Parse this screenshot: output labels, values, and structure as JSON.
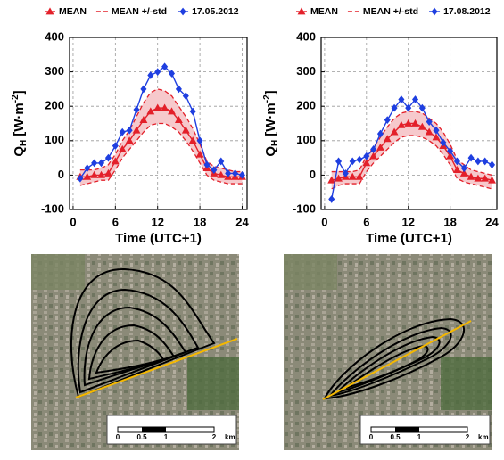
{
  "chart_data": [
    {
      "type": "line",
      "ylabel": {
        "main": "Q",
        "sub": "H",
        "unit": "[W·m",
        "sup": "-2",
        "end": "]"
      },
      "xlabel": "Time (UTC+1)",
      "x": [
        1,
        2,
        3,
        4,
        5,
        6,
        7,
        8,
        9,
        10,
        11,
        12,
        13,
        14,
        15,
        16,
        17,
        18,
        19,
        20,
        21,
        22,
        23,
        24
      ],
      "xlim": [
        -0.5,
        24.7
      ],
      "xticks": [
        0,
        6,
        12,
        18,
        24
      ],
      "ylim": [
        -100,
        400
      ],
      "yticks": [
        -100,
        0,
        100,
        200,
        300,
        400
      ],
      "grid": true,
      "series": [
        {
          "name": "MEAN",
          "color": "#e3202a",
          "marker": "triangle",
          "values": [
            -5,
            -5,
            0,
            0,
            5,
            40,
            75,
            100,
            130,
            160,
            185,
            195,
            195,
            185,
            160,
            130,
            100,
            60,
            20,
            5,
            0,
            -5,
            -5,
            -5
          ]
        },
        {
          "name": "MEAN +/-std",
          "color": "#e3202a",
          "band": "#f6c9cc",
          "upper": [
            15,
            15,
            15,
            20,
            30,
            60,
            100,
            130,
            170,
            210,
            240,
            250,
            245,
            230,
            200,
            170,
            135,
            90,
            40,
            25,
            20,
            15,
            10,
            10
          ],
          "lower": [
            -30,
            -25,
            -20,
            -15,
            -15,
            15,
            50,
            75,
            100,
            125,
            145,
            150,
            150,
            140,
            125,
            100,
            70,
            35,
            0,
            -15,
            -20,
            -25,
            -25,
            -25
          ]
        },
        {
          "name": "17.05.2012",
          "color": "#1f3fe0",
          "marker": "diamond",
          "values": [
            -10,
            20,
            35,
            35,
            50,
            85,
            125,
            130,
            190,
            250,
            290,
            300,
            315,
            295,
            250,
            230,
            185,
            100,
            30,
            15,
            40,
            5,
            5,
            0
          ]
        }
      ]
    },
    {
      "type": "line",
      "ylabel": {
        "main": "Q",
        "sub": "H",
        "unit": "[W·m",
        "sup": "-2",
        "end": "]"
      },
      "xlabel": "Time (UTC+1)",
      "x": [
        1,
        2,
        3,
        4,
        5,
        6,
        7,
        8,
        9,
        10,
        11,
        12,
        13,
        14,
        15,
        16,
        17,
        18,
        19,
        20,
        21,
        22,
        23,
        24
      ],
      "xlim": [
        -0.5,
        24.7
      ],
      "xticks": [
        0,
        6,
        12,
        18,
        24
      ],
      "ylim": [
        -100,
        400
      ],
      "yticks": [
        -100,
        0,
        100,
        200,
        300,
        400
      ],
      "grid": true,
      "series": [
        {
          "name": "MEAN",
          "color": "#e3202a",
          "marker": "triangle",
          "values": [
            -15,
            -10,
            -5,
            -5,
            -5,
            35,
            55,
            80,
            105,
            125,
            145,
            150,
            150,
            140,
            125,
            110,
            85,
            55,
            15,
            5,
            -5,
            -10,
            -10,
            -15
          ]
        },
        {
          "name": "MEAN +/-std",
          "color": "#e3202a",
          "band": "#f6c9cc",
          "upper": [
            10,
            10,
            10,
            10,
            15,
            55,
            80,
            110,
            140,
            165,
            180,
            185,
            185,
            180,
            165,
            150,
            125,
            90,
            45,
            30,
            15,
            10,
            5,
            0
          ],
          "lower": [
            -40,
            -30,
            -25,
            -25,
            -25,
            10,
            35,
            55,
            75,
            95,
            110,
            115,
            115,
            110,
            100,
            85,
            60,
            30,
            -10,
            -20,
            -25,
            -30,
            -35,
            -40
          ]
        },
        {
          "name": "17.08.2012",
          "color": "#1f3fe0",
          "marker": "diamond",
          "values": [
            -70,
            40,
            5,
            40,
            45,
            55,
            75,
            120,
            160,
            195,
            220,
            195,
            220,
            195,
            155,
            130,
            95,
            70,
            40,
            20,
            50,
            40,
            40,
            30
          ]
        }
      ]
    }
  ],
  "maps": [
    {
      "scale": [
        "0",
        "0.5",
        "1",
        "2",
        "km"
      ]
    },
    {
      "scale": [
        "0",
        "0.5",
        "1",
        "2",
        "km"
      ]
    }
  ]
}
